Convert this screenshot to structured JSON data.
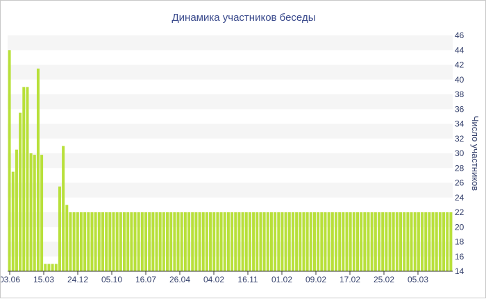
{
  "chart_data": {
    "type": "bar",
    "title": "Динамика участников беседы",
    "xlabel": "",
    "ylabel": "Число участников",
    "ylim": [
      14,
      46
    ],
    "y_ticks": [
      14,
      16,
      18,
      20,
      22,
      24,
      26,
      28,
      30,
      32,
      34,
      36,
      38,
      40,
      42,
      44,
      46
    ],
    "y_axis_side": "right",
    "grid": "alternating horizontal bands",
    "x_tick_labels": [
      "03.06",
      "15.03",
      "24.12",
      "05.10",
      "16.07",
      "26.04",
      "04.02",
      "16.11",
      "01.02",
      "09.02",
      "17.02",
      "25.02",
      "05.03"
    ],
    "bar_color": "#b8e03a",
    "band_color": "#f5f5f5",
    "series": [
      {
        "values": [
          44,
          27.5,
          30.5,
          35.5,
          39,
          39,
          30,
          29.8,
          41.5,
          29.8,
          15,
          15,
          15,
          15,
          25.5,
          31,
          23,
          22,
          22,
          22,
          22,
          22,
          22,
          22,
          22,
          22,
          22,
          22,
          22,
          22,
          22,
          22,
          22,
          22,
          22,
          22,
          22,
          22,
          22,
          22,
          22,
          22,
          22,
          22,
          22,
          22,
          22,
          22,
          22,
          22,
          22,
          22,
          22,
          22,
          22,
          22,
          22,
          22,
          22,
          22,
          22,
          22,
          22,
          22,
          22,
          22,
          22,
          22,
          22,
          22,
          22,
          22,
          22,
          22,
          22,
          22,
          22,
          22,
          22,
          22,
          22,
          22,
          22,
          22,
          22,
          22,
          22,
          22,
          22,
          22,
          22,
          22,
          22,
          22,
          22,
          22,
          22,
          22,
          22,
          22,
          22,
          22,
          22,
          22,
          22,
          22,
          22,
          22,
          22,
          22,
          22,
          22,
          22,
          22,
          22,
          22,
          22,
          22,
          22,
          22,
          22,
          22,
          22,
          22
        ]
      }
    ]
  }
}
